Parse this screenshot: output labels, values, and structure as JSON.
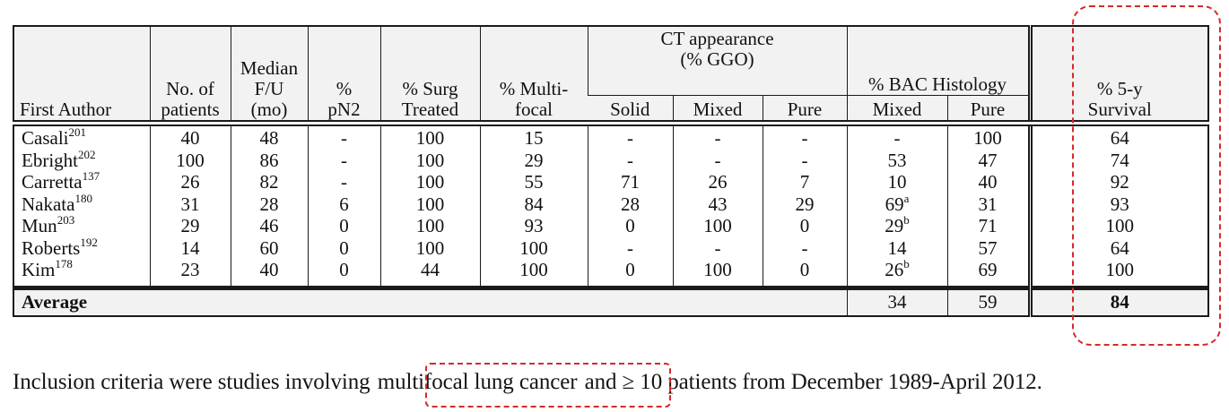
{
  "table": {
    "headers": {
      "first_author": "First Author",
      "patients": [
        "No. of",
        "patients"
      ],
      "median_fu": [
        "Median",
        "F/U",
        "(mo)"
      ],
      "pn2": [
        "%",
        "pN2"
      ],
      "surg": [
        "% Surg",
        "Treated"
      ],
      "multifocal": [
        "% Multi-",
        "focal"
      ],
      "ct_group": [
        "CT appearance",
        "(% GGO)"
      ],
      "ct_solid": "Solid",
      "ct_mixed": "Mixed",
      "ct_pure": "Pure",
      "bac_group": "% BAC Histology",
      "bac_mixed": "Mixed",
      "bac_pure": "Pure",
      "survival": [
        "% 5-y",
        "Survival"
      ]
    },
    "rows": [
      {
        "author": "Casali",
        "ref": "201",
        "patients": "40",
        "fu": "48",
        "pn2": "-",
        "surg": "100",
        "multi": "15",
        "solid": "-",
        "mixed": "-",
        "pure": "-",
        "bac_mixed": "-",
        "bac_mixed_sup": "",
        "bac_pure": "100",
        "survival": "64"
      },
      {
        "author": "Ebright",
        "ref": "202",
        "patients": "100",
        "fu": "86",
        "pn2": "-",
        "surg": "100",
        "multi": "29",
        "solid": "-",
        "mixed": "-",
        "pure": "-",
        "bac_mixed": "53",
        "bac_mixed_sup": "",
        "bac_pure": "47",
        "survival": "74"
      },
      {
        "author": "Carretta",
        "ref": "137",
        "patients": "26",
        "fu": "82",
        "pn2": "-",
        "surg": "100",
        "multi": "55",
        "solid": "71",
        "mixed": "26",
        "pure": "7",
        "bac_mixed": "10",
        "bac_mixed_sup": "",
        "bac_pure": "40",
        "survival": "92"
      },
      {
        "author": "Nakata",
        "ref": "180",
        "patients": "31",
        "fu": "28",
        "pn2": "6",
        "surg": "100",
        "multi": "84",
        "solid": "28",
        "mixed": "43",
        "pure": "29",
        "bac_mixed": "69",
        "bac_mixed_sup": "a",
        "bac_pure": "31",
        "survival": "93"
      },
      {
        "author": "Mun",
        "ref": "203",
        "patients": "29",
        "fu": "46",
        "pn2": "0",
        "surg": "100",
        "multi": "93",
        "solid": "0",
        "mixed": "100",
        "pure": "0",
        "bac_mixed": "29",
        "bac_mixed_sup": "b",
        "bac_pure": "71",
        "survival": "100"
      },
      {
        "author": "Roberts",
        "ref": "192",
        "patients": "14",
        "fu": "60",
        "pn2": "0",
        "surg": "100",
        "multi": "100",
        "solid": "-",
        "mixed": "-",
        "pure": "-",
        "bac_mixed": "14",
        "bac_mixed_sup": "",
        "bac_pure": "57",
        "survival": "64"
      },
      {
        "author": "Kim",
        "ref": "178",
        "patients": "23",
        "fu": "40",
        "pn2": "0",
        "surg": "44",
        "multi": "100",
        "solid": "0",
        "mixed": "100",
        "pure": "0",
        "bac_mixed": "26",
        "bac_mixed_sup": "b",
        "bac_pure": "69",
        "survival": "100"
      }
    ],
    "average": {
      "label": "Average",
      "bac_mixed": "34",
      "bac_pure": "59",
      "survival": "84"
    }
  },
  "caption": {
    "before": "Inclusion criteria were studies involving",
    "highlight": "multifocal lung cancer",
    "after": "and ≥ 10 patients from December 1989-April 2012."
  },
  "highlight_color": "#d42a2a"
}
